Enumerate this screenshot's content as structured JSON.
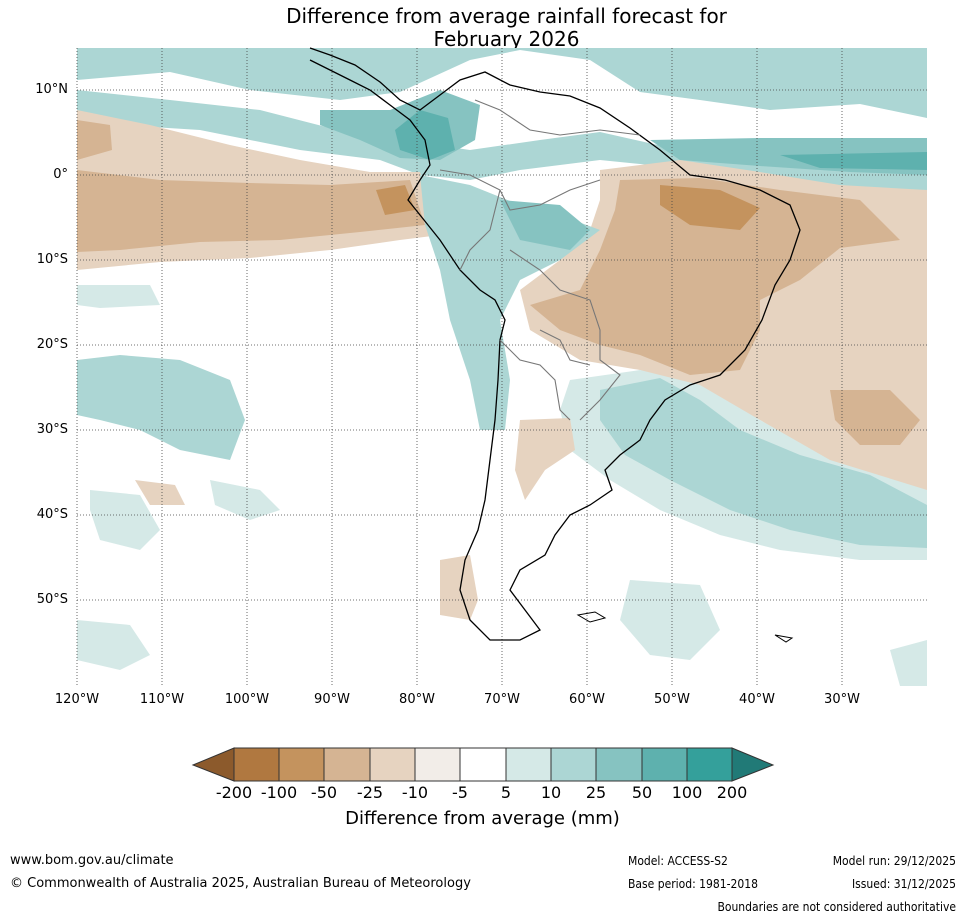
{
  "title_line1": "Difference from average rainfall forecast for",
  "title_line2": "February 2026",
  "lat_labels": [
    "10°N",
    "0°",
    "10°S",
    "20°S",
    "30°S",
    "40°S",
    "50°S"
  ],
  "lon_labels": [
    "120°W",
    "110°W",
    "100°W",
    "90°W",
    "80°W",
    "70°W",
    "60°W",
    "50°W",
    "40°W",
    "30°W"
  ],
  "legend": {
    "title": "Difference from average (mm)",
    "ticks": [
      "-200",
      "-100",
      "-50",
      "-25",
      "-10",
      "-5",
      "5",
      "10",
      "25",
      "50",
      "100",
      "200"
    ],
    "colors": [
      "#8c5a2c",
      "#b07840",
      "#c4935e",
      "#d5b493",
      "#e6d3c0",
      "#f2ede8",
      "#ffffff",
      "#d5e9e7",
      "#acd6d4",
      "#86c3c1",
      "#5eb1ae",
      "#34a09b",
      "#217a77"
    ]
  },
  "footer": {
    "website": "www.bom.gov.au/climate",
    "copyright": "© Commonwealth of Australia 2025, Australian Bureau of Meteorology",
    "model": "Model: ACCESS-S2",
    "base_period": "Base period: 1981-2018",
    "model_run": "Model run: 29/12/2025",
    "issued": "Issued: 31/12/2025",
    "disclaimer": "Boundaries are not considered authoritative"
  }
}
